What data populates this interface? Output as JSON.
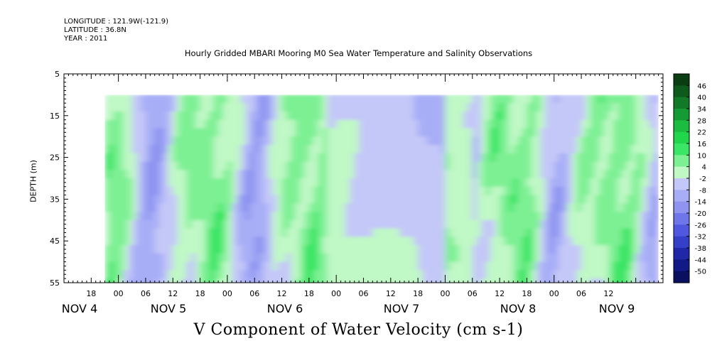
{
  "header": {
    "longitude": "LONGITUDE : 121.9W(-121.9)",
    "latitude": "LATITUDE : 36.8N",
    "year": "YEAR : 2011"
  },
  "chart_data": {
    "type": "heatmap",
    "title": "Hourly Gridded MBARI Mooring M0 Sea Water Temperature and Salinity Observations",
    "xlabel": "V Component of Water Velocity (cm s-1)",
    "ylabel": "DEPTH (m)",
    "y_range": [
      5,
      55
    ],
    "y_inverted": true,
    "y_ticks": [
      "5",
      "15",
      "25",
      "35",
      "45",
      "55"
    ],
    "x_hour_ticks": [
      "18",
      "00",
      "06",
      "12",
      "18",
      "00",
      "06",
      "12",
      "18",
      "00",
      "06",
      "12",
      "18",
      "00",
      "06",
      "12",
      "18",
      "00",
      "06",
      "12"
    ],
    "x_day_labels": [
      "NOV 4",
      "NOV 5",
      "NOV 6",
      "NOV 7",
      "NOV 8",
      "NOV 9"
    ],
    "x_start": "2011-11-04 12:00",
    "x_end": "2011-11-10 00:00",
    "data_start": "2011-11-04 21:00",
    "data_end": "2011-11-09 23:00",
    "data_depth_range": [
      10,
      55
    ],
    "colorbar": {
      "labels": [
        "46",
        "40",
        "34",
        "28",
        "22",
        "16",
        "10",
        "4",
        "-2",
        "-8",
        "-14",
        "-20",
        "-26",
        "-32",
        "-38",
        "-44",
        "-50"
      ],
      "colors": [
        "#0b3d12",
        "#0e5a1c",
        "#127a27",
        "#169a33",
        "#1cbc40",
        "#22d64c",
        "#3be565",
        "#7ef094",
        "#c0f8c6",
        "#c4c8f8",
        "#a8aef6",
        "#8e94f0",
        "#6f76ea",
        "#4f58df",
        "#3540c9",
        "#2028a8",
        "#121a86",
        "#0a0f60"
      ]
    }
  }
}
